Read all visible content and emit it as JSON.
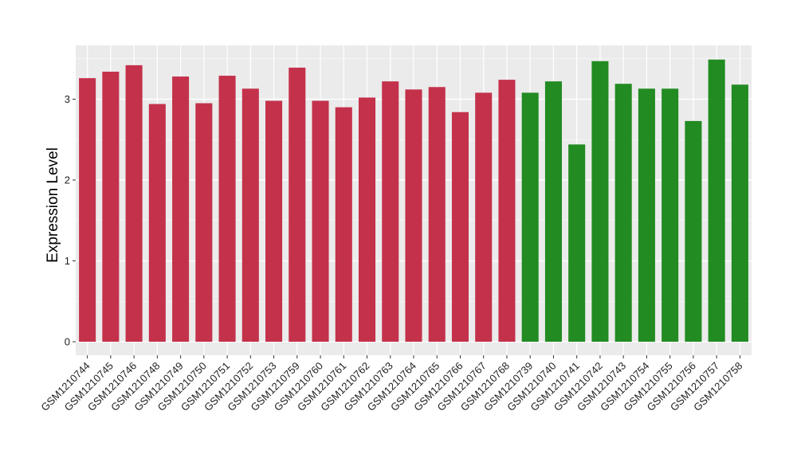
{
  "chart_data": {
    "type": "bar",
    "title": "",
    "xlabel": "",
    "ylabel": "Expression Level",
    "ylim": [
      0,
      3.5
    ],
    "yticks": [
      0,
      1,
      2,
      3
    ],
    "grid": true,
    "legend": "none",
    "colors": {
      "group_a": "#C4314B",
      "group_b": "#228B22",
      "panel": "#EBEBEB",
      "grid": "#FFFFFF"
    },
    "categories": [
      "GSM1210744",
      "GSM1210745",
      "GSM1210746",
      "GSM1210748",
      "GSM1210749",
      "GSM1210750",
      "GSM1210751",
      "GSM1210752",
      "GSM1210753",
      "GSM1210759",
      "GSM1210760",
      "GSM1210761",
      "GSM1210762",
      "GSM1210763",
      "GSM1210764",
      "GSM1210765",
      "GSM1210766",
      "GSM1210767",
      "GSM1210768",
      "GSM1210739",
      "GSM1210740",
      "GSM1210741",
      "GSM1210742",
      "GSM1210743",
      "GSM1210754",
      "GSM1210755",
      "GSM1210756",
      "GSM1210757",
      "GSM1210758"
    ],
    "values": [
      3.26,
      3.34,
      3.42,
      2.94,
      3.28,
      2.95,
      3.29,
      3.13,
      2.98,
      3.39,
      2.98,
      2.9,
      3.02,
      3.22,
      3.12,
      3.15,
      2.84,
      3.08,
      3.24,
      3.08,
      3.22,
      2.44,
      3.47,
      3.19,
      3.13,
      3.13,
      2.73,
      3.49,
      3.18
    ],
    "groups": [
      "a",
      "a",
      "a",
      "a",
      "a",
      "a",
      "a",
      "a",
      "a",
      "a",
      "a",
      "a",
      "a",
      "a",
      "a",
      "a",
      "a",
      "a",
      "a",
      "b",
      "b",
      "b",
      "b",
      "b",
      "b",
      "b",
      "b",
      "b",
      "b"
    ]
  }
}
